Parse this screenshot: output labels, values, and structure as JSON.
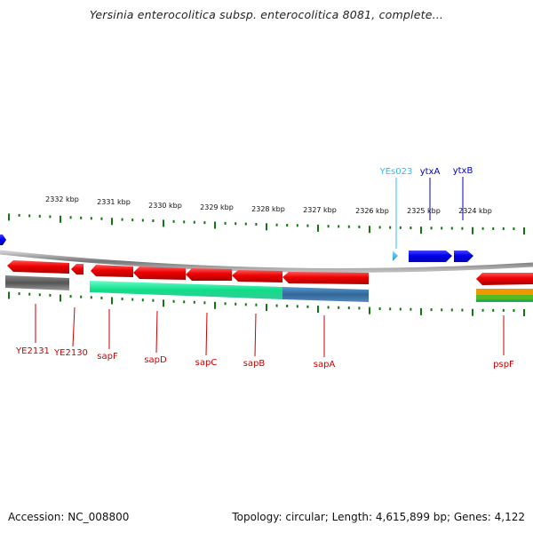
{
  "title": "Yersinia enterocolitica subsp. enterocolitica 8081, complete...",
  "footer": {
    "accession": "Accession: NC_008800",
    "summary": "Topology: circular; Length: 4,615,899 bp; Genes: 4,122"
  },
  "scale": {
    "unit": "kbp",
    "labels": [
      "2332 kbp",
      "2331 kbp",
      "2330 kbp",
      "2329 kbp",
      "2328 kbp",
      "2327 kbp",
      "2326 kbp",
      "2325 kbp",
      "2324 kbp"
    ]
  },
  "colors": {
    "forward_gene": "#0000ee",
    "reverse_gene": "#ee0000",
    "rna": "#44bbee",
    "pseudogene": "#666666",
    "domain_green": "#22dd99",
    "domain_blue": "#3377aa",
    "orange": "#ee9900",
    "lime": "#44bb22",
    "ticks": "#117711",
    "backbone": "#999999"
  },
  "features": {
    "forward": [
      {
        "name": "YEs023",
        "color": "#33bbee"
      },
      {
        "name": "ytxA",
        "color": "#0000bb"
      },
      {
        "name": "ytxB",
        "color": "#0000bb"
      }
    ],
    "reverse": [
      "YE2131",
      "YE2130",
      "sapF",
      "sapD",
      "sapC",
      "sapB",
      "sapA",
      "pspF"
    ]
  }
}
